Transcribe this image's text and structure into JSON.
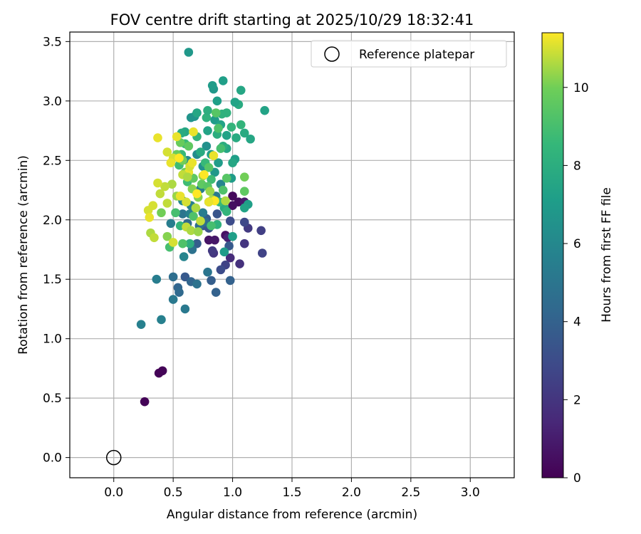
{
  "chart_data": {
    "type": "scatter",
    "title": "FOV centre drift starting at 2025/10/29 18:32:41",
    "xlabel": "Angular distance from reference (arcmin)",
    "ylabel": "Rotation from reference (arcmin)",
    "xlim": [
      -0.37,
      3.37
    ],
    "ylim": [
      -0.17,
      3.58
    ],
    "xticks": [
      0.0,
      0.5,
      1.0,
      1.5,
      2.0,
      2.5,
      3.0
    ],
    "xtick_labels": [
      "0.0",
      "0.5",
      "1.0",
      "1.5",
      "2.0",
      "2.5",
      "3.0"
    ],
    "yticks": [
      0.0,
      0.5,
      1.0,
      1.5,
      2.0,
      2.5,
      3.0,
      3.5
    ],
    "ytick_labels": [
      "0.0",
      "0.5",
      "1.0",
      "1.5",
      "2.0",
      "2.5",
      "3.0",
      "3.5"
    ],
    "grid": true,
    "legend": {
      "label": "Reference platepar",
      "position": "top-right"
    },
    "reference_point": {
      "x": 0.0,
      "y": 0.0
    },
    "colorbar": {
      "label": "Hours from first FF file",
      "range": [
        0,
        11.4
      ],
      "ticks": [
        0,
        2,
        4,
        6,
        8,
        10
      ],
      "tick_labels": [
        "0",
        "2",
        "4",
        "6",
        "8",
        "10"
      ],
      "colormap": "viridis"
    },
    "points": [
      [
        0.26,
        0.47,
        0.1
      ],
      [
        0.38,
        0.71,
        0.1
      ],
      [
        0.41,
        0.73,
        0.1
      ],
      [
        1.0,
        2.2,
        0.3
      ],
      [
        1.05,
        2.15,
        0.4
      ],
      [
        1.0,
        2.12,
        0.5
      ],
      [
        0.94,
        1.87,
        0.6
      ],
      [
        0.8,
        1.83,
        0.7
      ],
      [
        0.85,
        1.83,
        0.8
      ],
      [
        1.1,
        2.15,
        0.9
      ],
      [
        0.96,
        1.85,
        1.2
      ],
      [
        0.98,
        1.68,
        1.6
      ],
      [
        1.06,
        1.63,
        1.8
      ],
      [
        1.1,
        1.8,
        2.0
      ],
      [
        0.84,
        1.72,
        2.0
      ],
      [
        0.83,
        1.74,
        2.2
      ],
      [
        1.13,
        1.93,
        2.2
      ],
      [
        1.24,
        1.91,
        2.4
      ],
      [
        1.25,
        1.72,
        2.6
      ],
      [
        0.94,
        1.62,
        2.6
      ],
      [
        1.1,
        1.98,
        2.8
      ],
      [
        0.98,
        1.99,
        3.0
      ],
      [
        0.9,
        1.58,
        3.0
      ],
      [
        0.8,
        1.93,
        3.2
      ],
      [
        0.75,
        1.95,
        3.4
      ],
      [
        0.87,
        2.05,
        3.4
      ],
      [
        0.97,
        1.78,
        3.6
      ],
      [
        0.6,
        1.52,
        3.6
      ],
      [
        0.7,
        1.8,
        3.8
      ],
      [
        0.78,
        2.01,
        3.8
      ],
      [
        0.82,
        1.49,
        3.8
      ],
      [
        0.86,
        1.39,
        4.0
      ],
      [
        0.98,
        1.49,
        4.0
      ],
      [
        0.65,
        1.48,
        4.2
      ],
      [
        0.54,
        1.43,
        4.2
      ],
      [
        0.55,
        1.39,
        4.4
      ],
      [
        0.62,
        1.97,
        4.4
      ],
      [
        0.72,
        1.95,
        4.6
      ],
      [
        0.5,
        1.52,
        4.6
      ],
      [
        0.7,
        1.46,
        4.8
      ],
      [
        0.66,
        1.75,
        4.8
      ],
      [
        0.58,
        2.05,
        5.0
      ],
      [
        0.79,
        1.56,
        5.0
      ],
      [
        0.5,
        1.33,
        5.2
      ],
      [
        0.6,
        1.25,
        5.2
      ],
      [
        0.36,
        1.5,
        5.4
      ],
      [
        0.48,
        1.97,
        5.4
      ],
      [
        0.4,
        1.16,
        5.6
      ],
      [
        0.23,
        1.12,
        5.6
      ],
      [
        0.59,
        1.69,
        5.8
      ],
      [
        0.65,
        2.12,
        5.6
      ],
      [
        0.75,
        2.06,
        5.4
      ],
      [
        0.8,
        2.15,
        5.0
      ],
      [
        0.86,
        2.2,
        5.2
      ],
      [
        0.9,
        2.3,
        5.8
      ],
      [
        0.73,
        2.26,
        5.5
      ],
      [
        0.64,
        2.05,
        5.6
      ],
      [
        0.77,
        1.98,
        4.6
      ],
      [
        0.58,
        2.16,
        6.0
      ],
      [
        0.62,
        2.5,
        6.2
      ],
      [
        0.7,
        2.55,
        6.2
      ],
      [
        0.75,
        2.45,
        6.4
      ],
      [
        0.78,
        2.62,
        6.4
      ],
      [
        0.65,
        2.86,
        6.6
      ],
      [
        0.68,
        2.87,
        6.6
      ],
      [
        0.63,
        3.41,
        6.8
      ],
      [
        0.84,
        3.1,
        6.8
      ],
      [
        0.83,
        3.13,
        7.0
      ],
      [
        0.85,
        2.84,
        7.0
      ],
      [
        0.87,
        3.0,
        7.2
      ],
      [
        0.92,
        3.17,
        7.2
      ],
      [
        0.9,
        2.8,
        7.4
      ],
      [
        0.95,
        2.71,
        7.4
      ],
      [
        0.88,
        2.48,
        7.0
      ],
      [
        0.85,
        2.4,
        6.8
      ],
      [
        0.82,
        2.55,
        7.2
      ],
      [
        0.79,
        2.75,
        7.4
      ],
      [
        0.7,
        2.9,
        7.6
      ],
      [
        0.6,
        2.74,
        7.6
      ],
      [
        0.57,
        2.73,
        7.8
      ],
      [
        0.73,
        2.57,
        7.8
      ],
      [
        0.95,
        2.6,
        7.6
      ],
      [
        0.99,
        2.35,
        7.0
      ],
      [
        1.02,
        2.51,
        7.2
      ],
      [
        1.0,
        2.48,
        7.6
      ],
      [
        1.03,
        2.69,
        7.8
      ],
      [
        1.05,
        2.97,
        7.8
      ],
      [
        1.07,
        3.09,
        7.6
      ],
      [
        1.02,
        2.99,
        7.4
      ],
      [
        1.27,
        2.92,
        7.4
      ],
      [
        1.1,
        2.73,
        7.8
      ],
      [
        1.15,
        2.68,
        7.6
      ],
      [
        1.13,
        2.13,
        7.2
      ],
      [
        1.1,
        2.1,
        7.4
      ],
      [
        1.0,
        1.86,
        7.2
      ],
      [
        0.93,
        1.73,
        7.0
      ],
      [
        0.93,
        2.1,
        7.8
      ],
      [
        0.92,
        2.62,
        8.0
      ],
      [
        0.87,
        2.72,
        8.0
      ],
      [
        0.91,
        2.89,
        8.2
      ],
      [
        0.95,
        2.9,
        8.2
      ],
      [
        0.99,
        2.78,
        8.4
      ],
      [
        1.07,
        2.8,
        8.4
      ],
      [
        0.78,
        2.86,
        8.2
      ],
      [
        0.79,
        2.92,
        8.0
      ],
      [
        0.7,
        2.7,
        8.4
      ],
      [
        0.6,
        2.64,
        8.6
      ],
      [
        0.57,
        2.55,
        8.6
      ],
      [
        0.55,
        2.46,
        8.8
      ],
      [
        0.62,
        2.32,
        8.8
      ],
      [
        0.77,
        2.48,
        8.6
      ],
      [
        0.82,
        2.34,
        8.8
      ],
      [
        0.89,
        2.15,
        8.6
      ],
      [
        0.95,
        2.07,
        8.4
      ],
      [
        0.87,
        1.96,
        8.2
      ],
      [
        0.64,
        1.8,
        8.0
      ],
      [
        0.56,
        1.95,
        8.4
      ],
      [
        0.47,
        1.77,
        9.0
      ],
      [
        0.58,
        1.8,
        9.2
      ],
      [
        0.52,
        2.06,
        9.0
      ],
      [
        0.67,
        2.03,
        9.2
      ],
      [
        0.82,
        1.95,
        9.0
      ],
      [
        0.92,
        2.25,
        9.2
      ],
      [
        0.95,
        2.35,
        9.4
      ],
      [
        0.9,
        2.6,
        9.0
      ],
      [
        0.88,
        2.77,
        9.2
      ],
      [
        0.86,
        2.9,
        9.4
      ],
      [
        0.8,
        2.44,
        9.4
      ],
      [
        0.74,
        2.3,
        9.6
      ],
      [
        0.79,
        2.28,
        9.4
      ],
      [
        0.67,
        2.35,
        9.6
      ],
      [
        0.63,
        2.62,
        9.6
      ],
      [
        0.56,
        2.65,
        9.8
      ],
      [
        0.53,
        2.55,
        9.8
      ],
      [
        0.58,
        2.5,
        10.0
      ],
      [
        0.6,
        2.4,
        10.0
      ],
      [
        0.66,
        2.26,
        10.2
      ],
      [
        0.71,
        2.19,
        10.2
      ],
      [
        0.75,
        2.37,
        10.4
      ],
      [
        0.81,
        2.24,
        10.4
      ],
      [
        0.83,
        2.17,
        10.6
      ],
      [
        0.94,
        2.16,
        10.6
      ],
      [
        1.1,
        2.36,
        10.0
      ],
      [
        1.1,
        2.24,
        9.6
      ],
      [
        0.53,
        2.2,
        10.4
      ],
      [
        0.49,
        2.3,
        10.6
      ],
      [
        0.43,
        2.28,
        10.8
      ],
      [
        0.45,
        2.14,
        10.8
      ],
      [
        0.4,
        2.06,
        10.0
      ],
      [
        0.33,
        2.12,
        11.0
      ],
      [
        0.29,
        2.08,
        11.0
      ],
      [
        0.3,
        2.02,
        11.2
      ],
      [
        0.31,
        1.89,
        10.6
      ],
      [
        0.34,
        1.85,
        10.8
      ],
      [
        0.45,
        1.86,
        10.2
      ],
      [
        0.5,
        1.81,
        11.0
      ],
      [
        0.61,
        1.94,
        10.8
      ],
      [
        0.65,
        1.91,
        10.6
      ],
      [
        0.71,
        1.9,
        10.4
      ],
      [
        0.73,
        1.99,
        10.8
      ],
      [
        0.61,
        2.15,
        11.0
      ],
      [
        0.56,
        2.2,
        11.2
      ],
      [
        0.69,
        2.1,
        10.6
      ],
      [
        0.63,
        2.4,
        11.2
      ],
      [
        0.64,
        2.45,
        11.0
      ],
      [
        0.66,
        2.48,
        11.2
      ],
      [
        0.58,
        2.38,
        10.8
      ],
      [
        0.62,
        2.36,
        10.6
      ],
      [
        0.5,
        2.52,
        11.0
      ],
      [
        0.53,
        2.7,
        11.2
      ],
      [
        0.37,
        2.31,
        11.0
      ],
      [
        0.39,
        2.22,
        10.8
      ],
      [
        0.48,
        2.48,
        11.2
      ],
      [
        0.45,
        2.57,
        11.0
      ],
      [
        0.37,
        2.69,
        11.2
      ],
      [
        0.67,
        2.74,
        11.2
      ],
      [
        0.84,
        2.54,
        11.2
      ],
      [
        0.85,
        2.16,
        11.4
      ],
      [
        0.8,
        2.15,
        11.2
      ],
      [
        0.55,
        2.52,
        11.4
      ],
      [
        0.7,
        2.22,
        11.4
      ],
      [
        0.76,
        2.38,
        11.4
      ]
    ]
  }
}
